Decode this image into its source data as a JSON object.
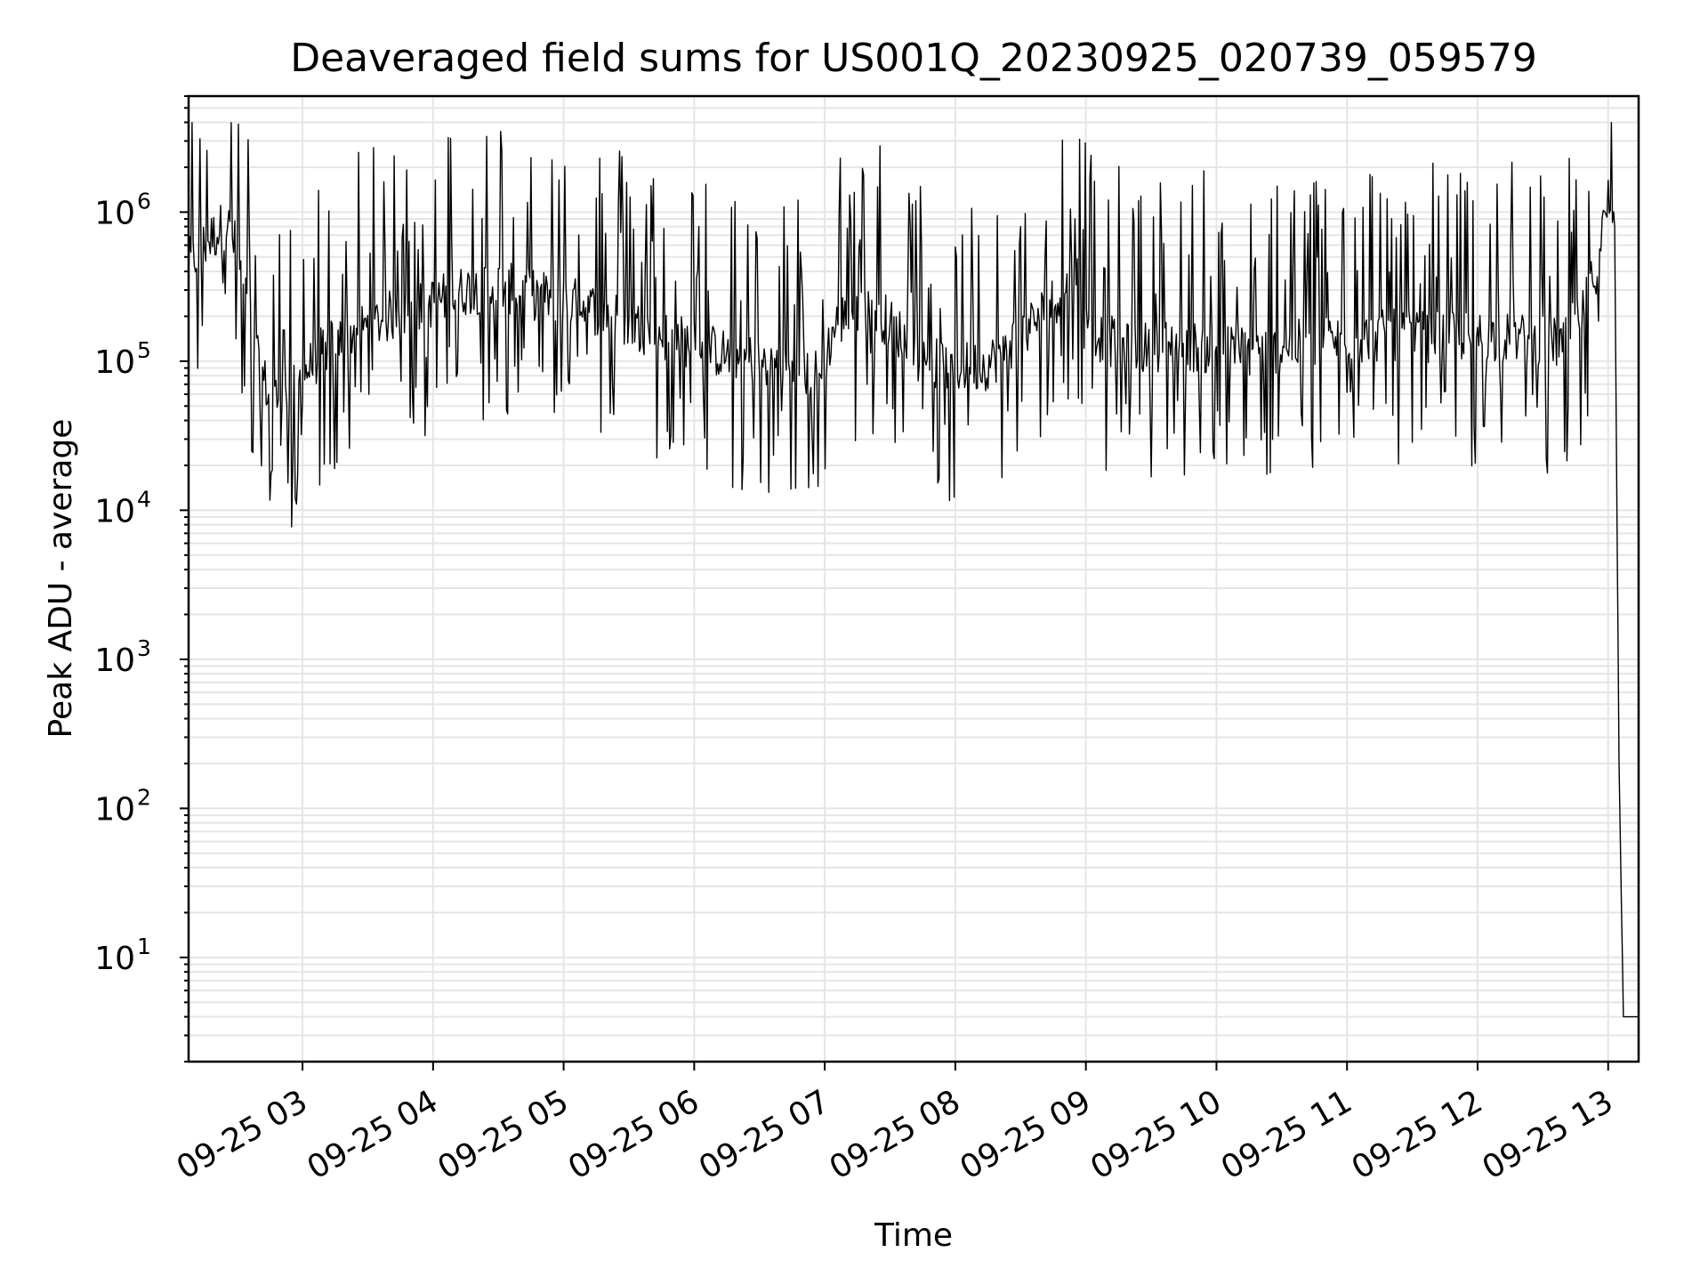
{
  "chart_data": {
    "type": "line",
    "title": "Deaveraged field sums for US001Q_20230925_020739_059579",
    "xlabel": "Time",
    "ylabel": "Peak ADU - average",
    "y_scale": "log",
    "ylim": [
      2,
      6000000
    ],
    "xlim": [
      "2023-09-25 02:07:39",
      "2023-09-25 13:14:00"
    ],
    "grid": true,
    "legend": "none",
    "line_color": "#000000",
    "grid_color": "#e5e5e5",
    "x_ticks": [
      {
        "value": "2023-09-25 03:00",
        "label": "09-25 03"
      },
      {
        "value": "2023-09-25 04:00",
        "label": "09-25 04"
      },
      {
        "value": "2023-09-25 05:00",
        "label": "09-25 05"
      },
      {
        "value": "2023-09-25 06:00",
        "label": "09-25 06"
      },
      {
        "value": "2023-09-25 07:00",
        "label": "09-25 07"
      },
      {
        "value": "2023-09-25 08:00",
        "label": "09-25 08"
      },
      {
        "value": "2023-09-25 09:00",
        "label": "09-25 09"
      },
      {
        "value": "2023-09-25 10:00",
        "label": "09-25 10"
      },
      {
        "value": "2023-09-25 11:00",
        "label": "09-25 11"
      },
      {
        "value": "2023-09-25 12:00",
        "label": "09-25 12"
      },
      {
        "value": "2023-09-25 13:00",
        "label": "09-25 13"
      }
    ],
    "y_ticks": [
      {
        "value": 10,
        "base": "10",
        "exponent": "1"
      },
      {
        "value": 100,
        "base": "10",
        "exponent": "2"
      },
      {
        "value": 1000,
        "base": "10",
        "exponent": "3"
      },
      {
        "value": 10000,
        "base": "10",
        "exponent": "4"
      },
      {
        "value": 100000,
        "base": "10",
        "exponent": "5"
      },
      {
        "value": 1000000,
        "base": "10",
        "exponent": "6"
      }
    ],
    "series": [
      {
        "x": [
          "2023-09-25 02:07:39",
          "2023-09-25 02:15",
          "2023-09-25 02:25",
          "2023-09-25 02:30",
          "2023-09-25 02:35",
          "2023-09-25 02:40",
          "2023-09-25 02:45",
          "2023-09-25 02:50",
          "2023-09-25 02:55",
          "2023-09-25 03:00",
          "2023-09-25 03:10",
          "2023-09-25 03:20",
          "2023-09-25 03:30",
          "2023-09-25 03:40",
          "2023-09-25 03:50",
          "2023-09-25 04:00",
          "2023-09-25 04:15",
          "2023-09-25 04:30",
          "2023-09-25 04:45",
          "2023-09-25 05:00",
          "2023-09-25 05:15",
          "2023-09-25 05:30",
          "2023-09-25 05:45",
          "2023-09-25 06:00",
          "2023-09-25 06:15",
          "2023-09-25 06:30",
          "2023-09-25 06:45",
          "2023-09-25 06:58",
          "2023-09-25 07:05",
          "2023-09-25 07:20",
          "2023-09-25 07:35",
          "2023-09-25 07:45",
          "2023-09-25 08:00",
          "2023-09-25 08:15",
          "2023-09-25 08:30",
          "2023-09-25 08:45",
          "2023-09-25 08:55",
          "2023-09-25 09:05",
          "2023-09-25 09:20",
          "2023-09-25 09:40",
          "2023-09-25 10:00",
          "2023-09-25 10:20",
          "2023-09-25 10:40",
          "2023-09-25 11:00",
          "2023-09-25 11:20",
          "2023-09-25 11:40",
          "2023-09-25 12:00",
          "2023-09-25 12:20",
          "2023-09-25 12:40",
          "2023-09-25 12:50",
          "2023-09-25 12:55",
          "2023-09-25 13:00",
          "2023-09-25 13:03",
          "2023-09-25 13:05",
          "2023-09-25 13:07",
          "2023-09-25 13:14"
        ],
        "values": [
          450000,
          600000,
          850000,
          550000,
          220000,
          90000,
          60000,
          55000,
          60000,
          80000,
          120000,
          150000,
          170000,
          200000,
          220000,
          250000,
          300000,
          320000,
          280000,
          260000,
          220000,
          180000,
          150000,
          130000,
          110000,
          100000,
          90000,
          80000,
          180000,
          250000,
          150000,
          100000,
          90000,
          95000,
          150000,
          250000,
          400000,
          150000,
          120000,
          130000,
          120000,
          115000,
          130000,
          140000,
          150000,
          145000,
          150000,
          140000,
          130000,
          250000,
          450000,
          1200000,
          800000,
          200,
          4,
          4
        ]
      }
    ]
  }
}
